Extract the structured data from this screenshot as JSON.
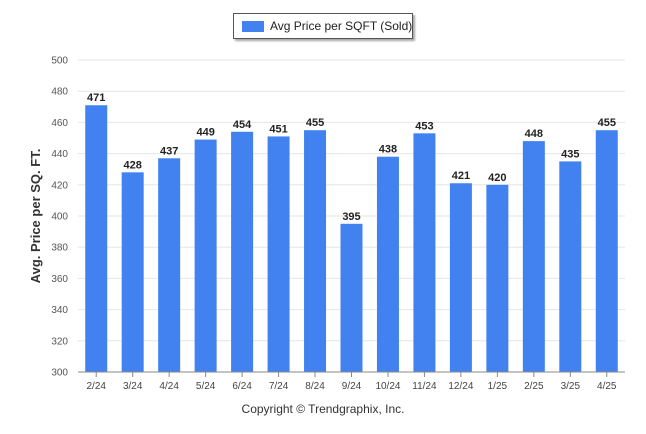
{
  "legend": {
    "label": "Avg Price per SQFT (Sold)"
  },
  "copyright": "Copyright © Trendgraphix, Inc.",
  "colors": {
    "bar": "#4282f0",
    "grid": "#e6e6e6",
    "axis": "#888888",
    "text": "#222222"
  },
  "chart_data": {
    "type": "bar",
    "title": "",
    "xlabel": "",
    "ylabel": "Avg. Price per SQ. FT.",
    "ylim": [
      300,
      500
    ],
    "yticks": [
      300,
      320,
      340,
      360,
      380,
      400,
      420,
      440,
      460,
      480,
      500
    ],
    "grid": true,
    "legend_position": "top-center",
    "categories": [
      "2/24",
      "3/24",
      "4/24",
      "5/24",
      "6/24",
      "7/24",
      "8/24",
      "9/24",
      "10/24",
      "11/24",
      "12/24",
      "1/25",
      "2/25",
      "3/25",
      "4/25"
    ],
    "series": [
      {
        "name": "Avg Price per SQFT (Sold)",
        "values": [
          471,
          428,
          437,
          449,
          454,
          451,
          455,
          395,
          438,
          453,
          421,
          420,
          448,
          435,
          455
        ]
      }
    ]
  }
}
